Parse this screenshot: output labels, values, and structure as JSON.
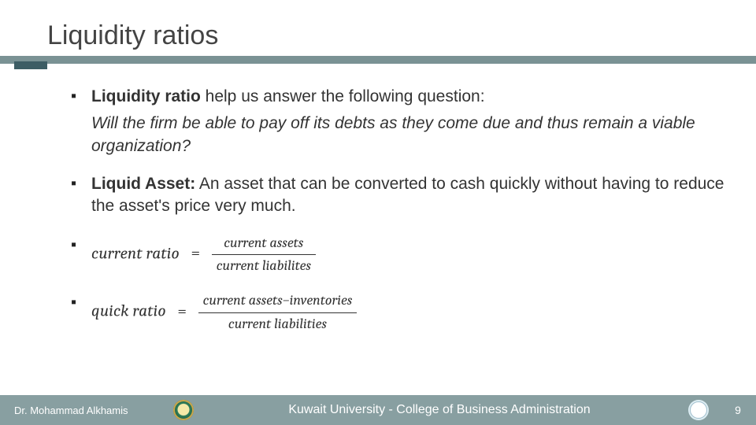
{
  "title": "Liquidity ratios",
  "colors": {
    "underline": "#7a9294",
    "accent": "#3d5d64",
    "footer_bg": "#889fa1",
    "text": "#333333",
    "footer_text": "#ffffff"
  },
  "bullets": {
    "lead": {
      "bold": "Liquidity ratio",
      "rest": " help us answer the following question:",
      "question": "Will the firm be able to pay off its debts as they come due and thus remain a viable organization?"
    },
    "def": {
      "term": "Liquid Asset:",
      "body": " An asset that can be converted to cash quickly without having to reduce the asset's price very much."
    },
    "formula1": {
      "name": "current ratio",
      "num": "current assets",
      "den": "current liabilites"
    },
    "formula2": {
      "name": "quick ratio",
      "num": "current assets−inventories",
      "den": "current liabilities"
    }
  },
  "footer": {
    "author": "Dr. Mohammad Alkhamis",
    "org": "Kuwait University - College of Business Administration",
    "page": "9",
    "logo_name": "university-seal-icon",
    "badge_name": "accreditation-badge-icon"
  },
  "typography": {
    "title_fontsize": 34,
    "body_fontsize": 21,
    "formula_fontsize": 18,
    "footer_fontsize": 14
  }
}
